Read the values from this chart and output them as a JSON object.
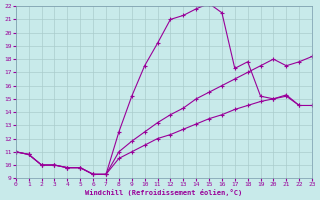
{
  "xlabel": "Windchill (Refroidissement éolien,°C)",
  "xlim": [
    0,
    23
  ],
  "ylim": [
    9,
    22
  ],
  "xticks": [
    0,
    1,
    2,
    3,
    4,
    5,
    6,
    7,
    8,
    9,
    10,
    11,
    12,
    13,
    14,
    15,
    16,
    17,
    18,
    19,
    20,
    21,
    22,
    23
  ],
  "yticks": [
    9,
    10,
    11,
    12,
    13,
    14,
    15,
    16,
    17,
    18,
    19,
    20,
    21,
    22
  ],
  "bg_color": "#c8eaea",
  "line_color": "#990099",
  "grid_color": "#aacccc",
  "lines": [
    {
      "x": [
        0,
        1,
        2,
        3,
        4,
        5,
        6,
        7,
        8,
        9,
        10,
        11,
        12,
        13,
        14,
        15,
        16,
        17,
        18,
        19,
        20,
        21,
        22
      ],
      "y": [
        11,
        10.8,
        10,
        10,
        9.8,
        9.8,
        9.3,
        9.3,
        12.5,
        15.2,
        17.5,
        19.2,
        21.0,
        21.3,
        21.8,
        22.2,
        21.5,
        17.3,
        17.8,
        15.2,
        15.0,
        15.2,
        14.5
      ]
    },
    {
      "x": [
        0,
        1,
        2,
        3,
        4,
        5,
        6,
        7,
        8,
        9,
        10,
        11,
        12,
        13,
        14,
        15,
        16,
        17,
        18,
        19,
        20,
        21,
        22,
        23
      ],
      "y": [
        11,
        10.8,
        10,
        10,
        9.8,
        9.8,
        9.3,
        9.3,
        11.0,
        11.8,
        12.5,
        13.2,
        13.8,
        14.3,
        15.0,
        15.5,
        16.0,
        16.5,
        17.0,
        17.5,
        18.0,
        17.5,
        17.8,
        18.2
      ]
    },
    {
      "x": [
        0,
        1,
        2,
        3,
        4,
        5,
        6,
        7,
        8,
        9,
        10,
        11,
        12,
        13,
        14,
        15,
        16,
        17,
        18,
        19,
        20,
        21,
        22,
        23
      ],
      "y": [
        11,
        10.8,
        10,
        10,
        9.8,
        9.8,
        9.3,
        9.3,
        10.5,
        11.0,
        11.5,
        12.0,
        12.3,
        12.7,
        13.1,
        13.5,
        13.8,
        14.2,
        14.5,
        14.8,
        15.0,
        15.3,
        14.5,
        14.5
      ]
    }
  ],
  "marker": "+"
}
